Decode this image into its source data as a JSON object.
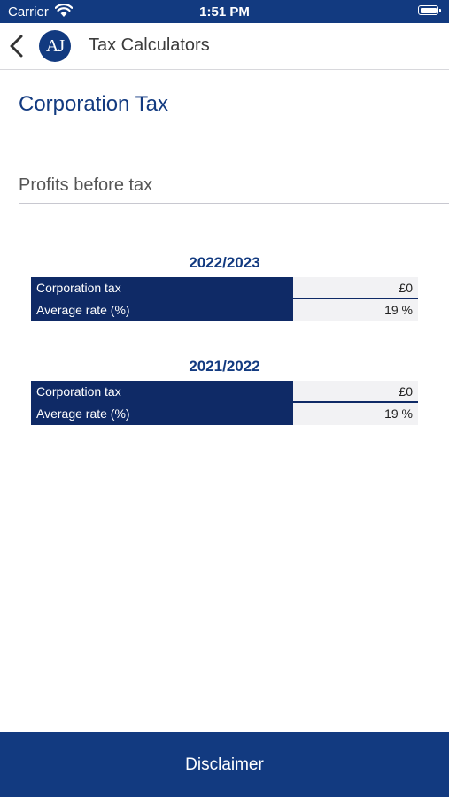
{
  "status_bar": {
    "carrier": "Carrier",
    "time": "1:51 PM"
  },
  "nav": {
    "title": "Tax Calculators",
    "logo_text": "AJ"
  },
  "page": {
    "heading": "Corporation Tax",
    "input_placeholder": "Profits before tax",
    "input_value": ""
  },
  "years": [
    {
      "label": "2022/2023",
      "rows": [
        {
          "label": "Corporation tax",
          "value": "£0"
        },
        {
          "label": "Average rate (%)",
          "value": "19 %"
        }
      ]
    },
    {
      "label": "2021/2022",
      "rows": [
        {
          "label": "Corporation tax",
          "value": "£0"
        },
        {
          "label": "Average rate (%)",
          "value": "19 %"
        }
      ]
    }
  ],
  "footer": {
    "disclaimer_label": "Disclaimer"
  },
  "colors": {
    "primary": "#123a80",
    "table_dark": "#0f2a66",
    "value_bg": "#f2f2f4"
  }
}
